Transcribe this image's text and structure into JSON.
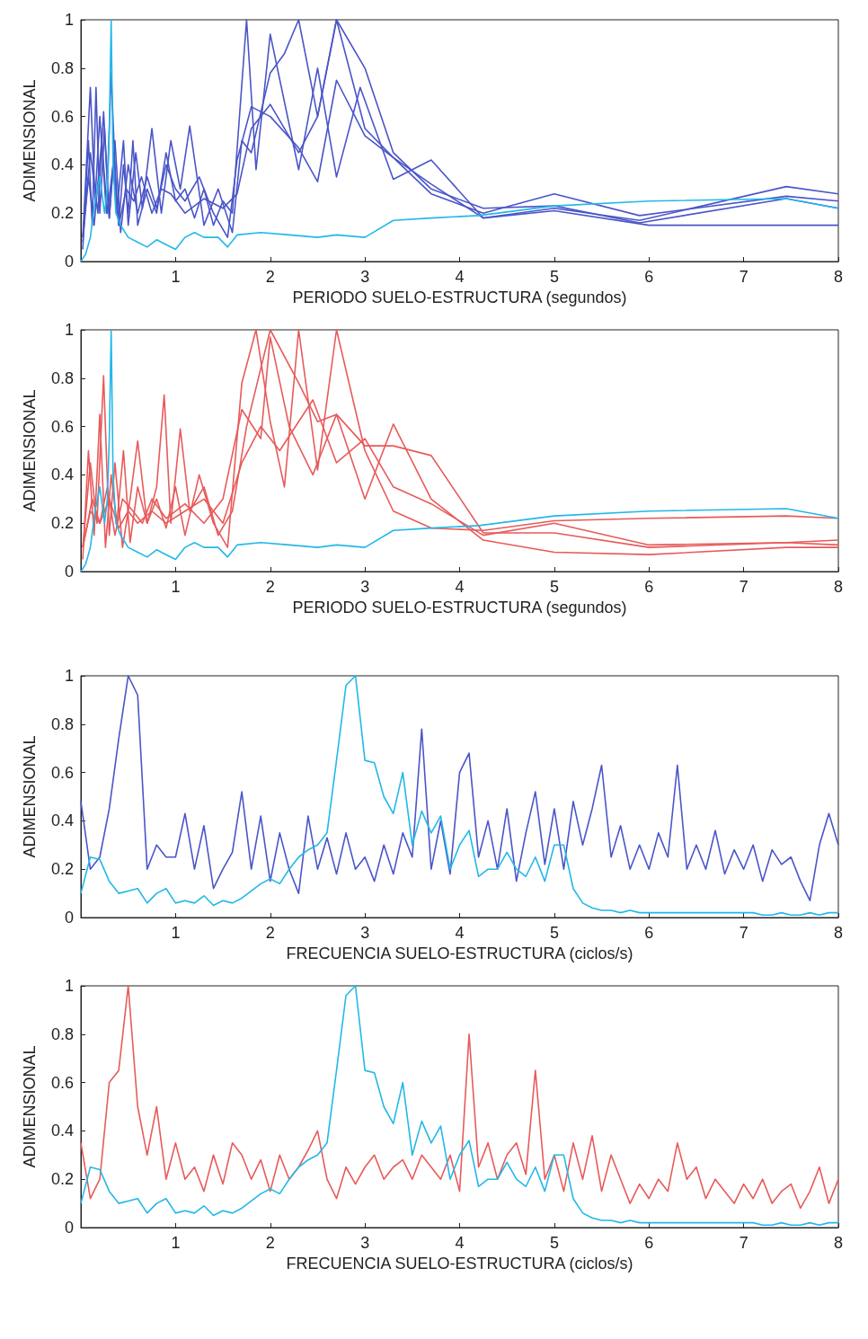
{
  "chart_data": [
    {
      "type": "line",
      "xlabel": "PERIODO SUELO-ESTRUCTURA (segundos)",
      "ylabel": "ADIMENSIONAL",
      "xlim": [
        0,
        8
      ],
      "ylim": [
        0,
        1
      ],
      "xticks": [
        1,
        2,
        3,
        4,
        5,
        6,
        7,
        8
      ],
      "yticks": [
        0,
        0.2,
        0.4,
        0.6,
        0.8,
        1
      ],
      "grid": false,
      "marker": "none",
      "series": [
        {
          "color": "#4a55c8",
          "x": [
            0.02,
            0.08,
            0.12,
            0.16,
            0.2,
            0.25,
            0.3,
            0.35,
            0.4,
            0.45,
            0.5,
            0.55,
            0.6,
            0.7,
            0.8,
            0.9,
            1.0,
            1.1,
            1.2,
            1.3,
            1.4,
            1.5,
            1.6,
            1.75,
            1.85,
            2.0,
            2.3,
            2.5,
            2.7,
            2.95,
            3.3,
            3.7,
            4.25,
            5.0,
            5.9,
            7.45,
            8
          ],
          "values": [
            0.05,
            0.5,
            0.15,
            0.72,
            0.2,
            0.55,
            0.18,
            0.45,
            0.15,
            0.4,
            0.2,
            0.5,
            0.15,
            0.3,
            0.2,
            0.45,
            0.25,
            0.3,
            0.18,
            0.3,
            0.15,
            0.25,
            0.2,
            1.0,
            0.38,
            0.94,
            0.38,
            0.8,
            0.35,
            0.72,
            0.34,
            0.42,
            0.18,
            0.22,
            0.17,
            0.31,
            0.28
          ]
        },
        {
          "color": "#4a55c8",
          "x": [
            0.02,
            0.1,
            0.15,
            0.2,
            0.27,
            0.32,
            0.38,
            0.45,
            0.5,
            0.58,
            0.65,
            0.75,
            0.85,
            0.95,
            1.05,
            1.15,
            1.3,
            1.45,
            1.6,
            1.7,
            1.8,
            2.0,
            2.15,
            2.3,
            2.5,
            2.7,
            3.0,
            3.3,
            3.7,
            4.25,
            5.0,
            5.9,
            7.45,
            8
          ],
          "values": [
            0.1,
            0.72,
            0.25,
            0.6,
            0.2,
            0.78,
            0.2,
            0.5,
            0.15,
            0.45,
            0.22,
            0.55,
            0.2,
            0.5,
            0.3,
            0.56,
            0.15,
            0.3,
            0.12,
            0.5,
            0.45,
            0.78,
            0.86,
            1.0,
            0.6,
            1.0,
            0.8,
            0.45,
            0.3,
            0.22,
            0.23,
            0.16,
            0.26,
            0.22
          ]
        },
        {
          "color": "#4a55c8",
          "x": [
            0.02,
            0.1,
            0.18,
            0.24,
            0.3,
            0.36,
            0.42,
            0.5,
            0.6,
            0.7,
            0.8,
            0.9,
            1.0,
            1.1,
            1.25,
            1.4,
            1.55,
            1.65,
            1.8,
            2.0,
            2.3,
            2.5,
            2.7,
            3.0,
            3.3,
            3.7,
            4.25,
            5.0,
            5.9,
            7.45,
            8
          ],
          "values": [
            0.1,
            0.45,
            0.2,
            0.62,
            0.18,
            0.5,
            0.12,
            0.4,
            0.2,
            0.35,
            0.22,
            0.4,
            0.3,
            0.25,
            0.35,
            0.2,
            0.1,
            0.42,
            0.64,
            0.6,
            0.47,
            0.33,
            0.75,
            0.52,
            0.43,
            0.28,
            0.2,
            0.28,
            0.19,
            0.27,
            0.25
          ]
        },
        {
          "color": "#4a55c8",
          "x": [
            0.02,
            0.08,
            0.14,
            0.22,
            0.28,
            0.34,
            0.4,
            0.48,
            0.56,
            0.64,
            0.75,
            0.85,
            0.95,
            1.1,
            1.3,
            1.5,
            1.65,
            1.8,
            2.0,
            2.3,
            2.5,
            2.7,
            3.0,
            3.3,
            3.7,
            4.25,
            5.0,
            6.0,
            7.45,
            8
          ],
          "values": [
            0.08,
            0.35,
            0.15,
            0.5,
            0.2,
            0.4,
            0.15,
            0.3,
            0.25,
            0.35,
            0.2,
            0.3,
            0.28,
            0.2,
            0.26,
            0.22,
            0.28,
            0.55,
            0.65,
            0.45,
            0.6,
            1.0,
            0.55,
            0.43,
            0.32,
            0.18,
            0.21,
            0.15,
            0.15,
            0.15
          ]
        },
        {
          "color": "#22b8e8",
          "x": [
            0,
            0.05,
            0.1,
            0.15,
            0.2,
            0.25,
            0.28,
            0.3,
            0.32,
            0.34,
            0.37,
            0.42,
            0.5,
            0.6,
            0.7,
            0.8,
            0.9,
            1.0,
            1.1,
            1.2,
            1.3,
            1.45,
            1.55,
            1.65,
            1.9,
            2.2,
            2.5,
            2.7,
            3.0,
            3.3,
            3.7,
            4.2,
            5.0,
            6.0,
            7.45,
            8
          ],
          "values": [
            0,
            0.03,
            0.1,
            0.25,
            0.35,
            0.2,
            0.3,
            0.55,
            1.0,
            0.4,
            0.2,
            0.15,
            0.1,
            0.08,
            0.06,
            0.09,
            0.07,
            0.05,
            0.1,
            0.12,
            0.1,
            0.1,
            0.06,
            0.11,
            0.12,
            0.11,
            0.1,
            0.11,
            0.1,
            0.17,
            0.18,
            0.19,
            0.23,
            0.25,
            0.26,
            0.22
          ]
        }
      ]
    },
    {
      "type": "line",
      "xlabel": "PERIODO SUELO-ESTRUCTURA (segundos)",
      "ylabel": "ADIMENSIONAL",
      "xlim": [
        0,
        8
      ],
      "ylim": [
        0,
        1
      ],
      "xticks": [
        1,
        2,
        3,
        4,
        5,
        6,
        7,
        8
      ],
      "yticks": [
        0,
        0.2,
        0.4,
        0.6,
        0.8,
        1
      ],
      "grid": false,
      "marker": "none",
      "series": [
        {
          "color": "#e85a5a",
          "x": [
            0.02,
            0.08,
            0.14,
            0.2,
            0.26,
            0.32,
            0.38,
            0.45,
            0.52,
            0.6,
            0.7,
            0.8,
            0.9,
            1.0,
            1.1,
            1.25,
            1.4,
            1.55,
            1.7,
            1.85,
            2.0,
            2.15,
            2.3,
            2.5,
            2.7,
            3.0,
            3.3,
            3.7,
            4.25,
            5.0,
            6.0,
            7.45,
            8
          ],
          "values": [
            0.05,
            0.5,
            0.15,
            0.65,
            0.1,
            0.4,
            0.2,
            0.5,
            0.12,
            0.35,
            0.2,
            0.3,
            0.18,
            0.35,
            0.15,
            0.4,
            0.2,
            0.1,
            0.78,
            1.0,
            0.62,
            0.35,
            1.0,
            0.42,
            1.0,
            0.5,
            0.25,
            0.18,
            0.17,
            0.21,
            0.22,
            0.23,
            0.22
          ]
        },
        {
          "color": "#e85a5a",
          "x": [
            0.02,
            0.1,
            0.17,
            0.24,
            0.3,
            0.36,
            0.44,
            0.52,
            0.6,
            0.7,
            0.8,
            0.88,
            0.95,
            1.05,
            1.15,
            1.3,
            1.45,
            1.6,
            1.75,
            2.0,
            2.3,
            2.5,
            2.7,
            3.0,
            3.3,
            3.7,
            4.25,
            5.0,
            6.0,
            7.45,
            8
          ],
          "values": [
            0.1,
            0.45,
            0.2,
            0.81,
            0.15,
            0.45,
            0.1,
            0.3,
            0.54,
            0.2,
            0.35,
            0.73,
            0.2,
            0.59,
            0.25,
            0.35,
            0.15,
            0.25,
            0.6,
            1.0,
            0.78,
            0.62,
            0.65,
            0.52,
            0.52,
            0.48,
            0.16,
            0.16,
            0.1,
            0.12,
            0.13
          ]
        },
        {
          "color": "#e85a5a",
          "x": [
            0.02,
            0.12,
            0.2,
            0.28,
            0.36,
            0.44,
            0.55,
            0.65,
            0.75,
            0.9,
            1.1,
            1.3,
            1.5,
            1.7,
            1.9,
            2.0,
            2.2,
            2.45,
            2.7,
            3.0,
            3.3,
            3.7,
            4.25,
            5.0,
            6.0,
            7.45,
            8
          ],
          "values": [
            0.1,
            0.3,
            0.2,
            0.35,
            0.15,
            0.3,
            0.25,
            0.2,
            0.3,
            0.22,
            0.28,
            0.2,
            0.3,
            0.67,
            0.55,
            0.97,
            0.6,
            0.4,
            0.65,
            0.3,
            0.61,
            0.3,
            0.13,
            0.08,
            0.07,
            0.1,
            0.1
          ]
        },
        {
          "color": "#e85a5a",
          "x": [
            0.02,
            0.1,
            0.2,
            0.3,
            0.4,
            0.5,
            0.6,
            0.75,
            0.9,
            1.1,
            1.3,
            1.5,
            1.7,
            1.9,
            2.1,
            2.45,
            2.7,
            3.0,
            3.3,
            3.7,
            4.25,
            5.0,
            6.0,
            7.45,
            8
          ],
          "values": [
            0.1,
            0.25,
            0.2,
            0.3,
            0.18,
            0.25,
            0.2,
            0.25,
            0.2,
            0.25,
            0.3,
            0.2,
            0.45,
            0.6,
            0.5,
            0.71,
            0.45,
            0.55,
            0.35,
            0.28,
            0.15,
            0.2,
            0.11,
            0.12,
            0.11
          ]
        },
        {
          "color": "#22b8e8",
          "x": [
            0,
            0.05,
            0.1,
            0.15,
            0.2,
            0.25,
            0.28,
            0.3,
            0.32,
            0.34,
            0.37,
            0.42,
            0.5,
            0.6,
            0.7,
            0.8,
            0.9,
            1.0,
            1.1,
            1.2,
            1.3,
            1.45,
            1.55,
            1.65,
            1.9,
            2.2,
            2.5,
            2.7,
            3.0,
            3.3,
            3.7,
            4.2,
            5.0,
            6.0,
            7.45,
            8
          ],
          "values": [
            0,
            0.03,
            0.1,
            0.25,
            0.35,
            0.2,
            0.3,
            0.55,
            1.0,
            0.4,
            0.2,
            0.15,
            0.1,
            0.08,
            0.06,
            0.09,
            0.07,
            0.05,
            0.1,
            0.12,
            0.1,
            0.1,
            0.06,
            0.11,
            0.12,
            0.11,
            0.1,
            0.11,
            0.1,
            0.17,
            0.18,
            0.19,
            0.23,
            0.25,
            0.26,
            0.22
          ]
        }
      ]
    },
    {
      "type": "line",
      "xlabel": "FRECUENCIA SUELO-ESTRUCTURA (ciclos/s)",
      "ylabel": "ADIMENSIONAL",
      "xlim": [
        0,
        8
      ],
      "ylim": [
        0,
        1
      ],
      "xticks": [
        1,
        2,
        3,
        4,
        5,
        6,
        7,
        8
      ],
      "yticks": [
        0,
        0.2,
        0.4,
        0.6,
        0.8,
        1
      ],
      "grid": false,
      "marker": "none",
      "x": [
        0,
        0.1,
        0.2,
        0.3,
        0.4,
        0.5,
        0.6,
        0.7,
        0.8,
        0.9,
        1.0,
        1.1,
        1.2,
        1.3,
        1.4,
        1.5,
        1.6,
        1.7,
        1.8,
        1.9,
        2.0,
        2.1,
        2.2,
        2.3,
        2.4,
        2.5,
        2.6,
        2.7,
        2.8,
        2.9,
        3.0,
        3.1,
        3.2,
        3.3,
        3.4,
        3.5,
        3.6,
        3.7,
        3.8,
        3.9,
        4.0,
        4.1,
        4.2,
        4.3,
        4.4,
        4.5,
        4.6,
        4.7,
        4.8,
        4.9,
        5.0,
        5.1,
        5.2,
        5.3,
        5.4,
        5.5,
        5.6,
        5.7,
        5.8,
        5.9,
        6.0,
        6.1,
        6.2,
        6.3,
        6.4,
        6.5,
        6.6,
        6.7,
        6.8,
        6.9,
        7.0,
        7.1,
        7.2,
        7.3,
        7.4,
        7.5,
        7.6,
        7.7,
        7.8,
        7.9,
        8.0
      ],
      "series": [
        {
          "color": "#4a55c8",
          "values": [
            0.48,
            0.2,
            0.25,
            0.45,
            0.74,
            1.0,
            0.92,
            0.2,
            0.3,
            0.25,
            0.25,
            0.43,
            0.2,
            0.38,
            0.12,
            0.2,
            0.27,
            0.52,
            0.2,
            0.42,
            0.15,
            0.35,
            0.2,
            0.1,
            0.42,
            0.2,
            0.33,
            0.18,
            0.35,
            0.2,
            0.25,
            0.15,
            0.3,
            0.18,
            0.35,
            0.25,
            0.78,
            0.2,
            0.4,
            0.18,
            0.6,
            0.68,
            0.25,
            0.4,
            0.2,
            0.45,
            0.15,
            0.35,
            0.52,
            0.22,
            0.45,
            0.2,
            0.48,
            0.3,
            0.45,
            0.63,
            0.25,
            0.38,
            0.2,
            0.3,
            0.2,
            0.35,
            0.25,
            0.63,
            0.2,
            0.3,
            0.2,
            0.36,
            0.18,
            0.28,
            0.2,
            0.3,
            0.15,
            0.28,
            0.22,
            0.25,
            0.15,
            0.07,
            0.3,
            0.43,
            0.3
          ]
        },
        {
          "color": "#22b8e8",
          "values": [
            0.1,
            0.25,
            0.24,
            0.15,
            0.1,
            0.11,
            0.12,
            0.06,
            0.1,
            0.12,
            0.06,
            0.07,
            0.06,
            0.09,
            0.05,
            0.07,
            0.06,
            0.08,
            0.11,
            0.14,
            0.16,
            0.14,
            0.2,
            0.25,
            0.28,
            0.3,
            0.35,
            0.65,
            0.96,
            1.0,
            0.65,
            0.64,
            0.5,
            0.43,
            0.6,
            0.3,
            0.44,
            0.35,
            0.42,
            0.2,
            0.3,
            0.36,
            0.17,
            0.2,
            0.2,
            0.27,
            0.2,
            0.17,
            0.25,
            0.15,
            0.3,
            0.3,
            0.12,
            0.06,
            0.04,
            0.03,
            0.03,
            0.02,
            0.03,
            0.02,
            0.02,
            0.02,
            0.02,
            0.02,
            0.02,
            0.02,
            0.02,
            0.02,
            0.02,
            0.02,
            0.02,
            0.02,
            0.01,
            0.01,
            0.02,
            0.01,
            0.01,
            0.02,
            0.01,
            0.02,
            0.02
          ]
        }
      ]
    },
    {
      "type": "line",
      "xlabel": "FRECUENCIA SUELO-ESTRUCTURA (ciclos/s)",
      "ylabel": "ADIMENSIONAL",
      "xlim": [
        0,
        8
      ],
      "ylim": [
        0,
        1
      ],
      "xticks": [
        1,
        2,
        3,
        4,
        5,
        6,
        7,
        8
      ],
      "yticks": [
        0,
        0.2,
        0.4,
        0.6,
        0.8,
        1
      ],
      "grid": false,
      "marker": "none",
      "x": [
        0,
        0.1,
        0.2,
        0.3,
        0.4,
        0.5,
        0.6,
        0.7,
        0.8,
        0.9,
        1.0,
        1.1,
        1.2,
        1.3,
        1.4,
        1.5,
        1.6,
        1.7,
        1.8,
        1.9,
        2.0,
        2.1,
        2.2,
        2.3,
        2.4,
        2.5,
        2.6,
        2.7,
        2.8,
        2.9,
        3.0,
        3.1,
        3.2,
        3.3,
        3.4,
        3.5,
        3.6,
        3.7,
        3.8,
        3.9,
        4.0,
        4.1,
        4.2,
        4.3,
        4.4,
        4.5,
        4.6,
        4.7,
        4.8,
        4.9,
        5.0,
        5.1,
        5.2,
        5.3,
        5.4,
        5.5,
        5.6,
        5.7,
        5.8,
        5.9,
        6.0,
        6.1,
        6.2,
        6.3,
        6.4,
        6.5,
        6.6,
        6.7,
        6.8,
        6.9,
        7.0,
        7.1,
        7.2,
        7.3,
        7.4,
        7.5,
        7.6,
        7.7,
        7.8,
        7.9,
        8.0
      ],
      "series": [
        {
          "color": "#e85a5a",
          "values": [
            0.35,
            0.12,
            0.2,
            0.6,
            0.65,
            1.0,
            0.5,
            0.3,
            0.5,
            0.2,
            0.35,
            0.2,
            0.25,
            0.15,
            0.3,
            0.18,
            0.35,
            0.3,
            0.2,
            0.28,
            0.15,
            0.3,
            0.2,
            0.25,
            0.32,
            0.4,
            0.2,
            0.12,
            0.25,
            0.18,
            0.25,
            0.3,
            0.2,
            0.25,
            0.28,
            0.2,
            0.3,
            0.25,
            0.2,
            0.3,
            0.15,
            0.8,
            0.25,
            0.35,
            0.2,
            0.3,
            0.35,
            0.22,
            0.65,
            0.2,
            0.3,
            0.15,
            0.35,
            0.2,
            0.38,
            0.15,
            0.3,
            0.2,
            0.1,
            0.18,
            0.12,
            0.2,
            0.15,
            0.35,
            0.2,
            0.25,
            0.12,
            0.2,
            0.15,
            0.1,
            0.18,
            0.12,
            0.2,
            0.1,
            0.15,
            0.18,
            0.08,
            0.15,
            0.25,
            0.1,
            0.2
          ]
        },
        {
          "color": "#22b8e8",
          "values": [
            0.1,
            0.25,
            0.24,
            0.15,
            0.1,
            0.11,
            0.12,
            0.06,
            0.1,
            0.12,
            0.06,
            0.07,
            0.06,
            0.09,
            0.05,
            0.07,
            0.06,
            0.08,
            0.11,
            0.14,
            0.16,
            0.14,
            0.2,
            0.25,
            0.28,
            0.3,
            0.35,
            0.65,
            0.96,
            1.0,
            0.65,
            0.64,
            0.5,
            0.43,
            0.6,
            0.3,
            0.44,
            0.35,
            0.42,
            0.2,
            0.3,
            0.36,
            0.17,
            0.2,
            0.2,
            0.27,
            0.2,
            0.17,
            0.25,
            0.15,
            0.3,
            0.3,
            0.12,
            0.06,
            0.04,
            0.03,
            0.03,
            0.02,
            0.03,
            0.02,
            0.02,
            0.02,
            0.02,
            0.02,
            0.02,
            0.02,
            0.02,
            0.02,
            0.02,
            0.02,
            0.02,
            0.02,
            0.01,
            0.01,
            0.02,
            0.01,
            0.01,
            0.02,
            0.01,
            0.02,
            0.02
          ]
        }
      ]
    }
  ]
}
